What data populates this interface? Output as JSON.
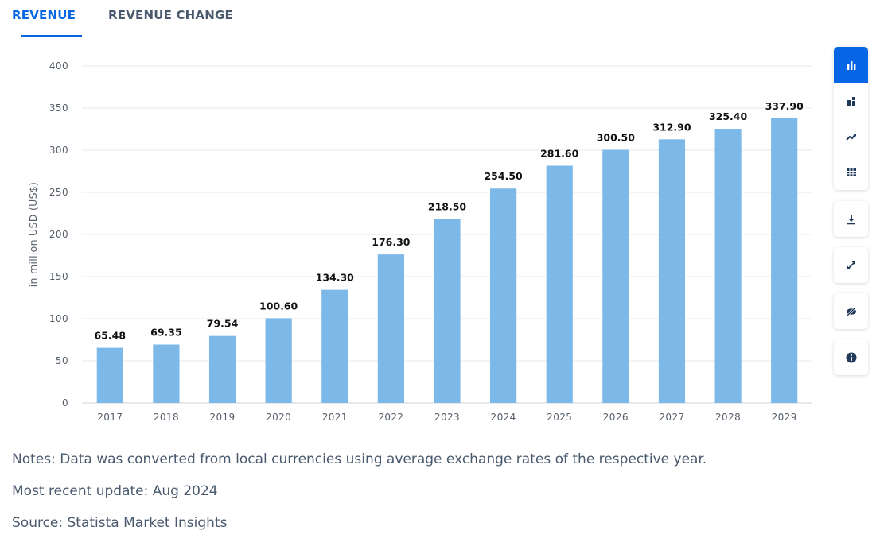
{
  "tabs": {
    "revenue": "REVENUE",
    "revenue_change": "REVENUE CHANGE"
  },
  "colors": {
    "bar": "#7cb8e8",
    "accent": "#0666e5",
    "grid": "#e6e9ed"
  },
  "chart_data": {
    "type": "bar",
    "categories": [
      "2017",
      "2018",
      "2019",
      "2020",
      "2021",
      "2022",
      "2023",
      "2024",
      "2025",
      "2026",
      "2027",
      "2028",
      "2029"
    ],
    "values": [
      65.48,
      69.35,
      79.54,
      100.6,
      134.3,
      176.3,
      218.5,
      254.5,
      281.6,
      300.5,
      312.9,
      325.4,
      337.9
    ],
    "value_labels": [
      "65.48",
      "69.35",
      "79.54",
      "100.60",
      "134.30",
      "176.30",
      "218.50",
      "254.50",
      "281.60",
      "300.50",
      "312.90",
      "325.40",
      "337.90"
    ],
    "yticks": [
      "0",
      "50",
      "100",
      "150",
      "200",
      "250",
      "300",
      "350",
      "400"
    ],
    "ylim": [
      0,
      400
    ],
    "ylabel": "in million USD (US$)",
    "xlabel": "",
    "grid": true
  },
  "toolbar": {
    "icons": [
      "bar-chart-icon",
      "stacked-chart-icon",
      "trend-icon",
      "table-icon",
      "download-icon",
      "fullscreen-icon",
      "hide-icon",
      "info-icon"
    ]
  },
  "notes": {
    "note": "Notes: Data was converted from local currencies using average exchange rates of the respective year.",
    "update": "Most recent update: Aug 2024",
    "source": "Source: Statista Market Insights"
  }
}
